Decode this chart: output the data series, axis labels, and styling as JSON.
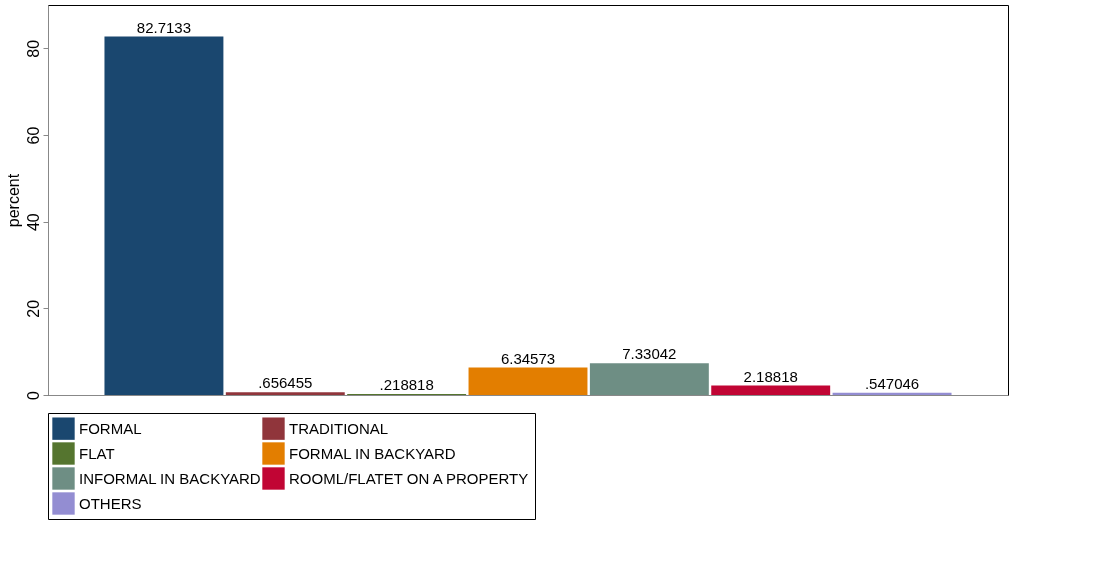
{
  "chart_data": {
    "type": "bar",
    "ylabel": "percent",
    "categories": [
      null
    ],
    "series": [
      {
        "name": "FORMAL",
        "color": "#1a476f",
        "values": [
          82.7133
        ],
        "value_labels": [
          "82.7133"
        ]
      },
      {
        "name": "TRADITIONAL",
        "color": "#90353b",
        "values": [
          0.656455
        ],
        "value_labels": [
          ".656455"
        ]
      },
      {
        "name": "FLAT",
        "color": "#55752f",
        "values": [
          0.218818
        ],
        "value_labels": [
          ".218818"
        ]
      },
      {
        "name": "FORMAL IN BACKYARD",
        "color": "#e37e00",
        "values": [
          6.34573
        ],
        "value_labels": [
          "6.34573"
        ]
      },
      {
        "name": "INFORMAL IN BACKYARD",
        "color": "#6e8e84",
        "values": [
          7.33042
        ],
        "value_labels": [
          "7.33042"
        ]
      },
      {
        "name": "ROOML/FLATET ON A PROPERTY",
        "color": "#c10534",
        "values": [
          2.18818
        ],
        "value_labels": [
          "2.18818"
        ]
      },
      {
        "name": "OTHERS",
        "color": "#938dd2",
        "values": [
          0.547046
        ],
        "value_labels": [
          ".547046"
        ]
      }
    ],
    "ylim": [
      0,
      90
    ],
    "yticks": [
      0,
      20,
      40,
      60,
      80
    ],
    "grid": false,
    "legend": "bottom",
    "tick_labels": "y"
  }
}
